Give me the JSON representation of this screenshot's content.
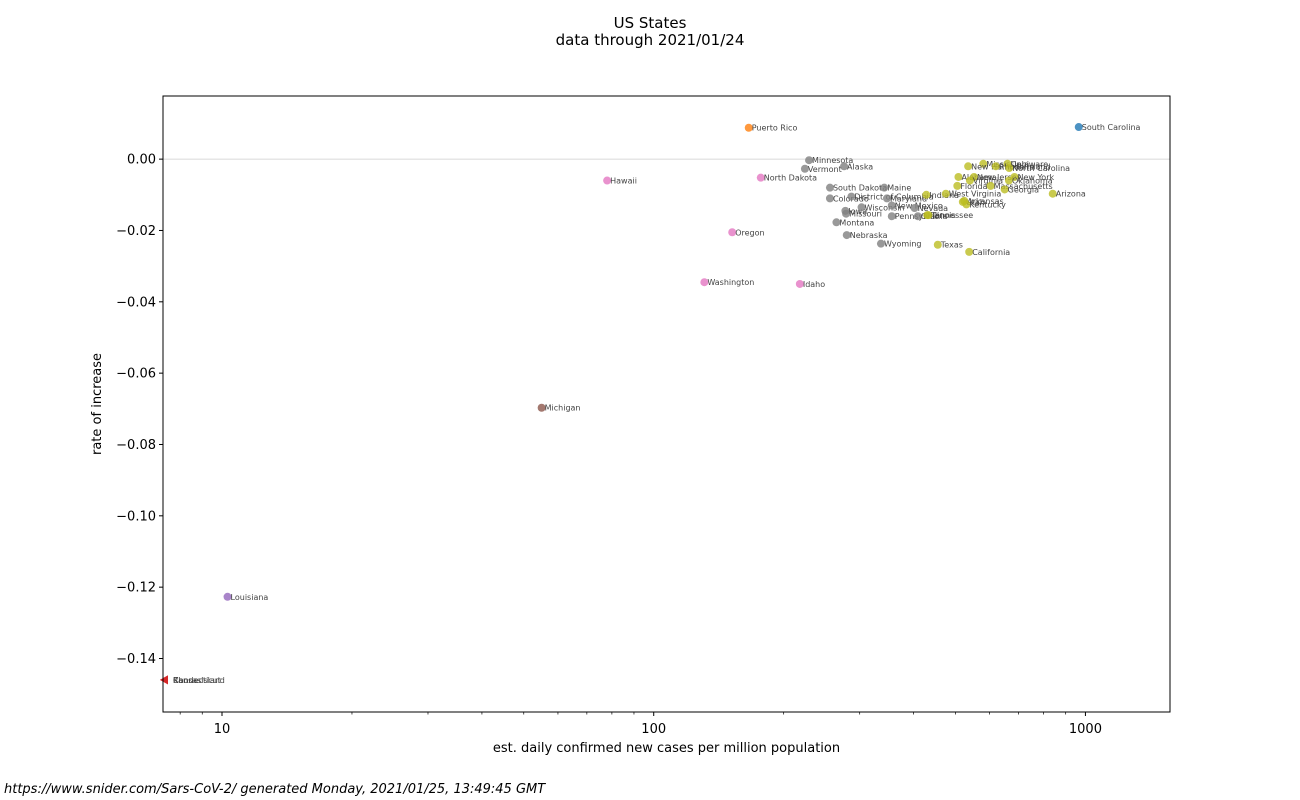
{
  "footer": "https://www.snider.com/Sars-CoV-2/ generated Monday, 2021/01/25, 13:49:45 GMT",
  "chart_data": {
    "type": "scatter",
    "title": "US States",
    "subtitle": "data through 2021/01/24",
    "xlabel": "est. daily confirmed new cases per million population",
    "ylabel": "rate of increase",
    "xscale": "log",
    "xlim": [
      7.3,
      1570
    ],
    "ylim": [
      -0.155,
      0.0177
    ],
    "xticks": [
      10,
      100,
      1000
    ],
    "xtick_labels": [
      "10",
      "100",
      "1000"
    ],
    "yticks": [
      0.0,
      -0.02,
      -0.04,
      -0.06,
      -0.08,
      -0.1,
      -0.12,
      -0.14
    ],
    "ytick_labels": [
      "0.00",
      "−0.02",
      "−0.04",
      "−0.06",
      "−0.08",
      "−0.10",
      "−0.12",
      "−0.14"
    ],
    "reference_line_y": 0.0,
    "colors": {
      "blue": "#1f77b4",
      "orange": "#ff7f0e",
      "pink": "#e377c2",
      "gray": "#7f7f7f",
      "olive": "#bcbd22",
      "brown": "#8c564b",
      "purple": "#9467bd",
      "red": "#d62728"
    },
    "points": [
      {
        "name": "South Carolina",
        "x": 965,
        "y": 0.009,
        "color": "blue"
      },
      {
        "name": "Puerto Rico",
        "x": 166,
        "y": 0.0088,
        "color": "orange"
      },
      {
        "name": "Hawaii",
        "x": 78,
        "y": -0.006,
        "color": "pink"
      },
      {
        "name": "North Dakota",
        "x": 177,
        "y": -0.0052,
        "color": "pink"
      },
      {
        "name": "Oregon",
        "x": 152,
        "y": -0.0205,
        "color": "pink"
      },
      {
        "name": "Washington",
        "x": 131,
        "y": -0.0345,
        "color": "pink"
      },
      {
        "name": "Idaho",
        "x": 218,
        "y": -0.035,
        "color": "pink"
      },
      {
        "name": "Minnesota",
        "x": 229,
        "y": -0.0003,
        "color": "gray"
      },
      {
        "name": "Vermont",
        "x": 224,
        "y": -0.0027,
        "color": "gray"
      },
      {
        "name": "Alaska",
        "x": 276,
        "y": -0.002,
        "color": "gray"
      },
      {
        "name": "South Dakota",
        "x": 256,
        "y": -0.008,
        "color": "gray"
      },
      {
        "name": "Maine",
        "x": 342,
        "y": -0.008,
        "color": "gray"
      },
      {
        "name": "Colorado",
        "x": 256,
        "y": -0.011,
        "color": "gray"
      },
      {
        "name": "District of Columbia",
        "x": 287,
        "y": -0.0105,
        "color": "gray"
      },
      {
        "name": "Maryland",
        "x": 347,
        "y": -0.011,
        "color": "gray"
      },
      {
        "name": "Iowa",
        "x": 278,
        "y": -0.0145,
        "color": "gray"
      },
      {
        "name": "Wisconsin",
        "x": 303,
        "y": -0.0135,
        "color": "gray"
      },
      {
        "name": "New Mexico",
        "x": 356,
        "y": -0.013,
        "color": "gray"
      },
      {
        "name": "Missouri",
        "x": 279,
        "y": -0.0153,
        "color": "gray"
      },
      {
        "name": "Nevada",
        "x": 402,
        "y": -0.0137,
        "color": "gray"
      },
      {
        "name": "Montana",
        "x": 265,
        "y": -0.0177,
        "color": "gray"
      },
      {
        "name": "Pennsylvania",
        "x": 356,
        "y": -0.016,
        "color": "gray"
      },
      {
        "name": "Ohio",
        "x": 409,
        "y": -0.016,
        "color": "gray"
      },
      {
        "name": "Nebraska",
        "x": 280,
        "y": -0.0213,
        "color": "gray"
      },
      {
        "name": "Wyoming",
        "x": 336,
        "y": -0.0237,
        "color": "gray"
      },
      {
        "name": "Mississippi",
        "x": 580,
        "y": -0.0013,
        "color": "olive"
      },
      {
        "name": "New Hampshire",
        "x": 535,
        "y": -0.002,
        "color": "olive"
      },
      {
        "name": "Delaware",
        "x": 660,
        "y": -0.0013,
        "color": "olive"
      },
      {
        "name": "Rhode Island",
        "x": 620,
        "y": -0.002,
        "color": "olive"
      },
      {
        "name": "North Carolina",
        "x": 666,
        "y": -0.0025,
        "color": "olive"
      },
      {
        "name": "Alabama",
        "x": 508,
        "y": -0.005,
        "color": "olive"
      },
      {
        "name": "New Jersey",
        "x": 552,
        "y": -0.005,
        "color": "olive"
      },
      {
        "name": "New York",
        "x": 685,
        "y": -0.005,
        "color": "olive"
      },
      {
        "name": "Virginia",
        "x": 540,
        "y": -0.006,
        "color": "olive"
      },
      {
        "name": "Oklahoma",
        "x": 665,
        "y": -0.006,
        "color": "olive"
      },
      {
        "name": "Florida",
        "x": 505,
        "y": -0.0075,
        "color": "olive"
      },
      {
        "name": "Massachusetts",
        "x": 603,
        "y": -0.0075,
        "color": "olive"
      },
      {
        "name": "Georgia",
        "x": 650,
        "y": -0.0085,
        "color": "olive"
      },
      {
        "name": "Arizona",
        "x": 840,
        "y": -0.0097,
        "color": "olive"
      },
      {
        "name": "Indiana",
        "x": 428,
        "y": -0.01,
        "color": "olive"
      },
      {
        "name": "West Virginia",
        "x": 475,
        "y": -0.0097,
        "color": "olive"
      },
      {
        "name": "Utah",
        "x": 520,
        "y": -0.012,
        "color": "olive"
      },
      {
        "name": "Arkansas",
        "x": 524,
        "y": -0.0117,
        "color": "olive"
      },
      {
        "name": "Kentucky",
        "x": 530,
        "y": -0.0127,
        "color": "olive"
      },
      {
        "name": "Illinois",
        "x": 430,
        "y": -0.0157,
        "color": "olive"
      },
      {
        "name": "Tennessee",
        "x": 433,
        "y": -0.0157,
        "color": "olive"
      },
      {
        "name": "Texas",
        "x": 455,
        "y": -0.024,
        "color": "olive"
      },
      {
        "name": "California",
        "x": 538,
        "y": -0.026,
        "color": "olive"
      },
      {
        "name": "Michigan",
        "x": 55,
        "y": -0.0697,
        "color": "brown"
      },
      {
        "name": "Louisiana",
        "x": 10.3,
        "y": -0.1227,
        "color": "purple"
      }
    ],
    "offscale_points": [
      {
        "name": "Kansas",
        "y": -0.146,
        "color": "red",
        "marker": "left-triangle"
      },
      {
        "name": "Connecticut",
        "y": -0.146,
        "color": "red",
        "marker": "left-triangle"
      },
      {
        "name": "Rhode Island",
        "y": -0.146,
        "color": "red",
        "marker": "left-triangle"
      }
    ]
  }
}
